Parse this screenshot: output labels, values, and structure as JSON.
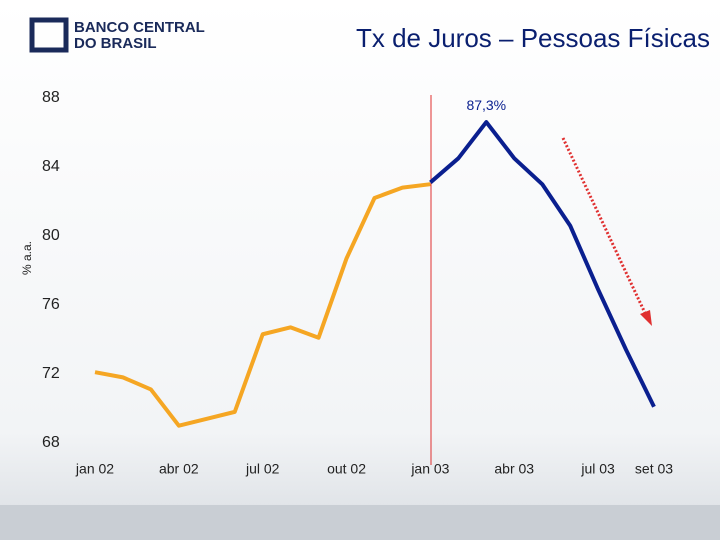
{
  "logo": [
    "BANCO CENTRAL",
    "DO BRASIL"
  ],
  "chart_data": {
    "type": "line",
    "title": "Tx de Juros – Pessoas Físicas",
    "y_label": "% a.a.",
    "categories": [
      "jan 02",
      null,
      null,
      "abr 02",
      null,
      null,
      "jul 02",
      null,
      null,
      "out 02",
      null,
      null,
      "jan 03",
      null,
      null,
      "abr 03",
      null,
      null,
      "jul 03",
      null,
      "set 03"
    ],
    "series": [
      {
        "color": "#f5a623",
        "values": [
          72.8,
          72.5,
          71.8,
          69.7,
          70.1,
          70.5,
          75.0,
          75.4,
          74.8,
          79.4,
          82.9,
          83.5,
          83.7,
          null,
          null,
          null,
          null,
          null,
          null,
          null,
          null
        ]
      },
      {
        "color": "#0a1f8f",
        "values": [
          null,
          null,
          null,
          null,
          null,
          null,
          null,
          null,
          null,
          null,
          null,
          null,
          83.8,
          85.2,
          87.3,
          85.2,
          83.7,
          81.3,
          77.6,
          74.1,
          70.8
        ],
        "value_labels": [
          null,
          null,
          null,
          null,
          null,
          null,
          null,
          null,
          null,
          null,
          null,
          null,
          null,
          null,
          "87,3%",
          null,
          null,
          null,
          null,
          null,
          null
        ]
      }
    ],
    "ylim": [
      68,
      88
    ],
    "yticks": [
      68,
      72,
      76,
      80,
      84,
      88
    ]
  }
}
